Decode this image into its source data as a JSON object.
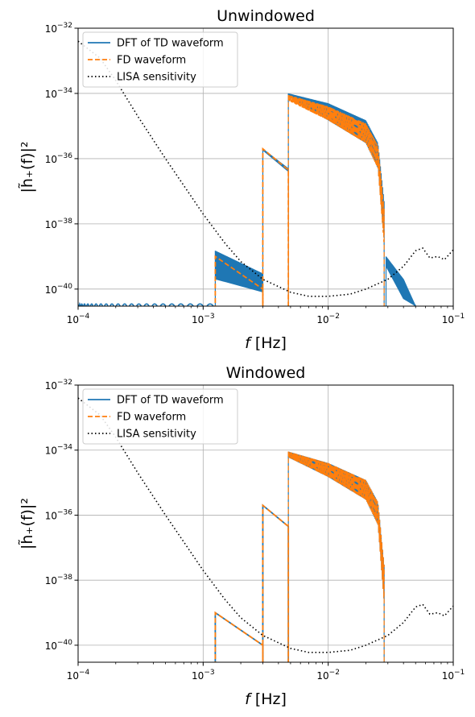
{
  "colors": {
    "td": "#1f77b4",
    "fd": "#ff7f0e",
    "lisa": "#000000",
    "grid": "#b0b0b0"
  },
  "chart_data": [
    {
      "type": "line",
      "title": "Unwindowed",
      "xlabel_base": "f",
      "xlabel_unit": "[Hz]",
      "ylabel": "|h̃₊(f)|²",
      "xscale": "log",
      "yscale": "log",
      "xlim": [
        0.0001,
        0.1
      ],
      "ylim": [
        3e-41,
        1e-32
      ],
      "xticks": [
        {
          "value": 0.0001,
          "base": "10",
          "exp": "−4"
        },
        {
          "value": 0.001,
          "base": "10",
          "exp": "−3"
        },
        {
          "value": 0.01,
          "base": "10",
          "exp": "−2"
        },
        {
          "value": 0.1,
          "base": "10",
          "exp": "−1"
        }
      ],
      "yticks": [
        {
          "value": 1e-40,
          "base": "10",
          "exp": "−40"
        },
        {
          "value": 1e-38,
          "base": "10",
          "exp": "−38"
        },
        {
          "value": 1e-36,
          "base": "10",
          "exp": "−36"
        },
        {
          "value": 1e-34,
          "base": "10",
          "exp": "−34"
        },
        {
          "value": 1e-32,
          "base": "10",
          "exp": "−32"
        }
      ],
      "grid": true,
      "legend_position": "top-left",
      "legend": [
        "DFT of TD waveform",
        "FD waveform",
        "LISA sensitivity"
      ],
      "series": [
        {
          "name": "DFT of TD waveform",
          "style": "solid",
          "color": "td",
          "segments": [
            {
              "kind": "oscillation",
              "f_start": 0.0001,
              "f_end": 0.00125,
              "y_top": 3.5e-41,
              "y_bottom": 3e-41,
              "cycles": 22
            },
            {
              "kind": "band",
              "f": [
                0.00125,
                0.003
              ],
              "upper": [
                1.5e-39,
                3e-40
              ],
              "lower": [
                2e-40,
                8e-41
              ]
            },
            {
              "kind": "band",
              "f": [
                0.003,
                0.0048
              ],
              "upper": [
                2e-36,
                5e-37
              ],
              "lower": [
                1.8e-36,
                4e-37
              ]
            },
            {
              "kind": "band",
              "f": [
                0.0048,
                0.01,
                0.02,
                0.025,
                0.028
              ],
              "upper": [
                1e-34,
                5e-35,
                1.5e-35,
                3e-36,
                5e-38
              ],
              "lower": [
                8e-35,
                1.5e-35,
                3e-36,
                5e-37,
                3e-39
              ]
            },
            {
              "kind": "band",
              "f": [
                0.029,
                0.04,
                0.05
              ],
              "upper": [
                1e-39,
                2e-40,
                3e-41
              ],
              "lower": [
                5e-40,
                5e-41,
                3e-41
              ]
            }
          ]
        },
        {
          "name": "FD waveform",
          "style": "dashed",
          "color": "fd",
          "segments": [
            {
              "kind": "line",
              "f": [
                0.00125,
                0.003
              ],
              "y": [
                1e-39,
                1e-40
              ]
            },
            {
              "kind": "line",
              "f": [
                0.003,
                0.0048
              ],
              "y": [
                2e-36,
                4.5e-37
              ]
            },
            {
              "kind": "band",
              "f": [
                0.0048,
                0.01,
                0.02,
                0.025,
                0.028
              ],
              "upper": [
                9e-35,
                4e-35,
                1.2e-35,
                2.5e-36,
                3e-38
              ],
              "lower": [
                6e-35,
                1.5e-35,
                3e-36,
                5e-37,
                2e-39
              ]
            }
          ]
        },
        {
          "name": "LISA sensitivity",
          "style": "dotted",
          "color": "lisa",
          "x": [
            0.0001,
            0.00015,
            0.0002,
            0.0003,
            0.0005,
            0.0007,
            0.001,
            0.0015,
            0.002,
            0.003,
            0.005,
            0.007,
            0.01,
            0.015,
            0.02,
            0.03,
            0.04,
            0.05,
            0.057,
            0.065,
            0.075,
            0.085,
            0.1
          ],
          "y": [
            4e-33,
            1.2e-33,
            2.5e-34,
            2e-35,
            1e-36,
            1.5e-37,
            2e-38,
            2.5e-39,
            7e-40,
            2e-40,
            8e-41,
            6e-41,
            6e-41,
            7e-41,
            1e-40,
            2e-40,
            5e-40,
            1.5e-39,
            1.8e-39,
            9e-40,
            1e-39,
            8e-40,
            1.6e-39
          ]
        }
      ]
    },
    {
      "type": "line",
      "title": "Windowed",
      "xlabel_base": "f",
      "xlabel_unit": "[Hz]",
      "ylabel": "|h̃₊(f)|²",
      "xscale": "log",
      "yscale": "log",
      "xlim": [
        0.0001,
        0.1
      ],
      "ylim": [
        3e-41,
        1e-32
      ],
      "xticks": [
        {
          "value": 0.0001,
          "base": "10",
          "exp": "−4"
        },
        {
          "value": 0.001,
          "base": "10",
          "exp": "−3"
        },
        {
          "value": 0.01,
          "base": "10",
          "exp": "−2"
        },
        {
          "value": 0.1,
          "base": "10",
          "exp": "−1"
        }
      ],
      "yticks": [
        {
          "value": 1e-40,
          "base": "10",
          "exp": "−40"
        },
        {
          "value": 1e-38,
          "base": "10",
          "exp": "−38"
        },
        {
          "value": 1e-36,
          "base": "10",
          "exp": "−36"
        },
        {
          "value": 1e-34,
          "base": "10",
          "exp": "−34"
        },
        {
          "value": 1e-32,
          "base": "10",
          "exp": "−32"
        }
      ],
      "grid": true,
      "legend_position": "top-left",
      "legend": [
        "DFT of TD waveform",
        "FD waveform",
        "LISA sensitivity"
      ],
      "series": [
        {
          "name": "DFT of TD waveform",
          "style": "solid",
          "color": "td",
          "segments": [
            {
              "kind": "line",
              "f": [
                0.00125,
                0.003
              ],
              "y": [
                1e-39,
                1e-40
              ]
            },
            {
              "kind": "line",
              "f": [
                0.003,
                0.0048
              ],
              "y": [
                2e-36,
                4.5e-37
              ]
            },
            {
              "kind": "band",
              "f": [
                0.0048,
                0.01,
                0.02,
                0.025,
                0.028
              ],
              "upper": [
                9e-35,
                4e-35,
                1.2e-35,
                2.5e-36,
                3e-38
              ],
              "lower": [
                6e-35,
                1.5e-35,
                3e-36,
                5e-37,
                2e-39
              ]
            }
          ]
        },
        {
          "name": "FD waveform",
          "style": "dashed",
          "color": "fd",
          "segments": [
            {
              "kind": "line",
              "f": [
                0.00125,
                0.003
              ],
              "y": [
                1e-39,
                1e-40
              ]
            },
            {
              "kind": "line",
              "f": [
                0.003,
                0.0048
              ],
              "y": [
                2e-36,
                4.5e-37
              ]
            },
            {
              "kind": "band",
              "f": [
                0.0048,
                0.01,
                0.02,
                0.025,
                0.028
              ],
              "upper": [
                9e-35,
                4e-35,
                1.2e-35,
                2.5e-36,
                3e-38
              ],
              "lower": [
                6e-35,
                1.5e-35,
                3e-36,
                5e-37,
                2e-39
              ]
            }
          ]
        },
        {
          "name": "LISA sensitivity",
          "style": "dotted",
          "color": "lisa",
          "x": [
            0.0001,
            0.00015,
            0.0002,
            0.0003,
            0.0005,
            0.0007,
            0.001,
            0.0015,
            0.002,
            0.003,
            0.005,
            0.007,
            0.01,
            0.015,
            0.02,
            0.03,
            0.04,
            0.05,
            0.057,
            0.065,
            0.075,
            0.085,
            0.1
          ],
          "y": [
            4e-33,
            1.2e-33,
            2.5e-34,
            2e-35,
            1e-36,
            1.5e-37,
            2e-38,
            2.5e-39,
            7e-40,
            2e-40,
            8e-41,
            6e-41,
            6e-41,
            7e-41,
            1e-40,
            2e-40,
            5e-40,
            1.5e-39,
            1.8e-39,
            9e-40,
            1e-39,
            8e-40,
            1.6e-39
          ]
        }
      ]
    }
  ]
}
